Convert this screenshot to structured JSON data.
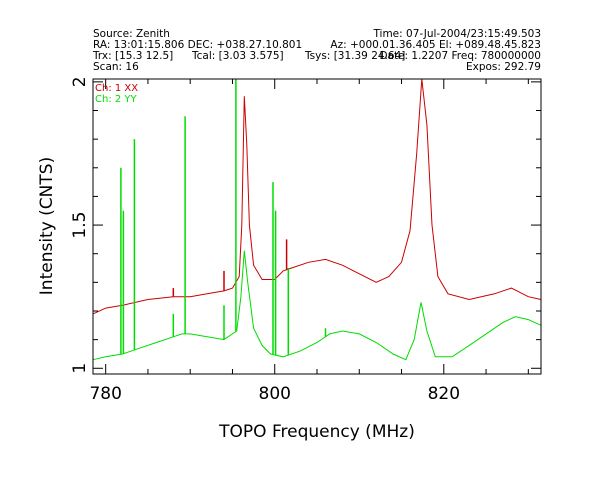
{
  "header": {
    "source": "Source: Zenith",
    "time": "Time: 07-Jul-2004/23:15:49.503",
    "ra_dec": "RA: 13:01:15.806  DEC: +038.27.10.801",
    "az_el": "Az: +000.01.36.405  El: +089.48.45.823",
    "trx": "Trx: [15.3 12.5]",
    "tcal": "Tcal: [3.03 3.575]",
    "tsys": "Tsys: [31.39 24.64]",
    "date_freq": "Date: 1.2207  Freq: 780000000",
    "scan": "Scan: 16",
    "expos": "Expos: 292.79"
  },
  "colors": {
    "ch1": "#cc0000",
    "ch2": "#00dd00",
    "axis": "#000000"
  },
  "chart_data": {
    "type": "line",
    "xlabel": "TOPO Frequency (MHz)",
    "ylabel": "Intensity (CNTS)",
    "xlim": [
      778.5,
      831.5
    ],
    "ylim": [
      0.98,
      2.01
    ],
    "x_ticks": [
      780,
      800,
      820
    ],
    "y_ticks": [
      1,
      1.5,
      2
    ],
    "x_tick_labels": [
      "780",
      "800",
      "820"
    ],
    "y_tick_labels": [
      "1",
      "1.5",
      "2"
    ],
    "legend_position": "top-left",
    "series": [
      {
        "name": "Ch: 1 XX",
        "color": "#cc0000",
        "points": [
          [
            778.5,
            1.19
          ],
          [
            780,
            1.21
          ],
          [
            782,
            1.22
          ],
          [
            785,
            1.24
          ],
          [
            788,
            1.25
          ],
          [
            790,
            1.25
          ],
          [
            792,
            1.26
          ],
          [
            794,
            1.27
          ],
          [
            795,
            1.28
          ],
          [
            795.8,
            1.32
          ],
          [
            796.1,
            1.5
          ],
          [
            796.4,
            1.95
          ],
          [
            796.7,
            1.78
          ],
          [
            797,
            1.5
          ],
          [
            797.5,
            1.36
          ],
          [
            798.5,
            1.31
          ],
          [
            800,
            1.31
          ],
          [
            801,
            1.34
          ],
          [
            802,
            1.35
          ],
          [
            804,
            1.37
          ],
          [
            806,
            1.38
          ],
          [
            808,
            1.36
          ],
          [
            810,
            1.33
          ],
          [
            812,
            1.3
          ],
          [
            813.5,
            1.32
          ],
          [
            815,
            1.37
          ],
          [
            816,
            1.48
          ],
          [
            816.8,
            1.75
          ],
          [
            817.4,
            2.01
          ],
          [
            818,
            1.85
          ],
          [
            818.6,
            1.5
          ],
          [
            819.3,
            1.32
          ],
          [
            820.5,
            1.26
          ],
          [
            823,
            1.24
          ],
          [
            826,
            1.26
          ],
          [
            828,
            1.28
          ],
          [
            830,
            1.25
          ],
          [
            831.5,
            1.24
          ]
        ],
        "spikes": [
          [
            788,
            1.28
          ],
          [
            794,
            1.34
          ],
          [
            801.4,
            1.45
          ]
        ]
      },
      {
        "name": "Ch: 2 YY",
        "color": "#00dd00",
        "points": [
          [
            778.5,
            1.03
          ],
          [
            780,
            1.04
          ],
          [
            782,
            1.05
          ],
          [
            784,
            1.07
          ],
          [
            786,
            1.09
          ],
          [
            788,
            1.11
          ],
          [
            789,
            1.12
          ],
          [
            790,
            1.12
          ],
          [
            792,
            1.11
          ],
          [
            794,
            1.1
          ],
          [
            795.5,
            1.13
          ],
          [
            796,
            1.25
          ],
          [
            796.4,
            1.41
          ],
          [
            796.8,
            1.3
          ],
          [
            797.5,
            1.14
          ],
          [
            798.5,
            1.08
          ],
          [
            799.5,
            1.05
          ],
          [
            801,
            1.04
          ],
          [
            803,
            1.06
          ],
          [
            805,
            1.09
          ],
          [
            806.5,
            1.12
          ],
          [
            808,
            1.13
          ],
          [
            810,
            1.12
          ],
          [
            812,
            1.09
          ],
          [
            814,
            1.05
          ],
          [
            815.5,
            1.03
          ],
          [
            816.5,
            1.1
          ],
          [
            817.3,
            1.23
          ],
          [
            818,
            1.13
          ],
          [
            819,
            1.04
          ],
          [
            821,
            1.04
          ],
          [
            823,
            1.08
          ],
          [
            825,
            1.12
          ],
          [
            827,
            1.16
          ],
          [
            828.5,
            1.18
          ],
          [
            830,
            1.17
          ],
          [
            831.5,
            1.15
          ]
        ],
        "spikes": [
          [
            781.8,
            1.7
          ],
          [
            782.1,
            1.55
          ],
          [
            783.4,
            1.8
          ],
          [
            788,
            1.19
          ],
          [
            789.4,
            1.88
          ],
          [
            794,
            1.22
          ],
          [
            795.4,
            2.01
          ],
          [
            799.8,
            1.65
          ],
          [
            800.1,
            1.55
          ],
          [
            801.6,
            1.35
          ],
          [
            806,
            1.14
          ]
        ]
      }
    ]
  }
}
